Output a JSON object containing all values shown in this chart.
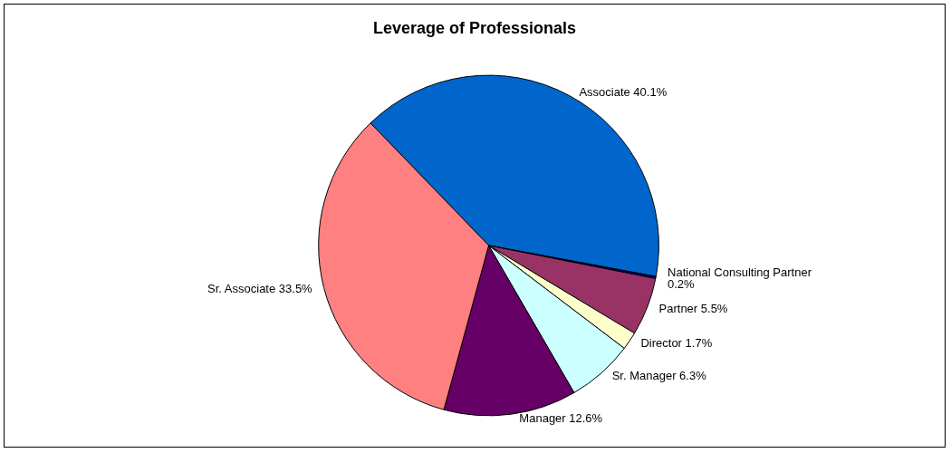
{
  "chart_data": {
    "type": "pie",
    "title": "Leverage of Professionals",
    "categories": [
      "Associate",
      "National Consulting Partner",
      "Partner",
      "Director",
      "Sr. Manager",
      "Manager",
      "Sr. Associate"
    ],
    "values": [
      40.1,
      0.2,
      5.5,
      1.7,
      6.3,
      12.6,
      33.5
    ],
    "colors": [
      "#0066cc",
      "#000080",
      "#993366",
      "#ffffcc",
      "#ccffff",
      "#660066",
      "#ff8080"
    ],
    "value_labels": [
      "40.1%",
      "0.2%",
      "5.5%",
      "1.7%",
      "6.3%",
      "12.6%",
      "33.5%"
    ],
    "legend": false
  }
}
